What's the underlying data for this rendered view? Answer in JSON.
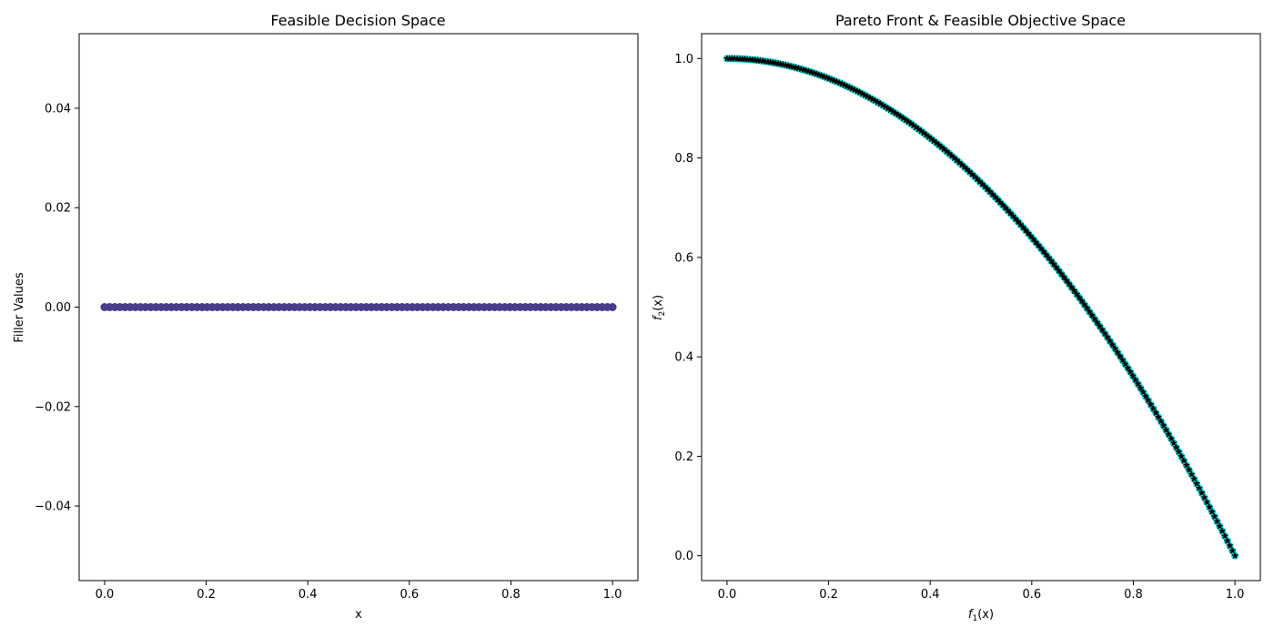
{
  "chart_data": [
    {
      "type": "scatter",
      "title": "Feasible Decision Space",
      "xlabel": "x",
      "ylabel": "Filler Values",
      "xlim": [
        -0.05,
        1.05
      ],
      "ylim": [
        -0.055,
        0.055
      ],
      "xticks": [
        0.0,
        0.2,
        0.4,
        0.6,
        0.8,
        1.0
      ],
      "xtick_labels": [
        "0.0",
        "0.2",
        "0.4",
        "0.6",
        "0.8",
        "1.0"
      ],
      "yticks": [
        -0.04,
        -0.02,
        0.0,
        0.02,
        0.04
      ],
      "ytick_labels": [
        "−0.04",
        "−0.02",
        "0.00",
        "0.02",
        "0.04"
      ],
      "grid": false,
      "series": [
        {
          "color": "#483d8b",
          "marker": "circle",
          "points": {
            "x_start": 0.0,
            "x_end": 1.0,
            "count": 100,
            "y": 0.0
          }
        }
      ]
    },
    {
      "type": "scatter",
      "title": "Pareto Front & Feasible Objective Space",
      "xlabel_base": "f",
      "xlabel_sub": "1",
      "xlabel_arg": "(x)",
      "ylabel_base": "f",
      "ylabel_sub": "2",
      "ylabel_arg": "(x)",
      "xlim": [
        -0.05,
        1.05
      ],
      "ylim": [
        -0.05,
        1.05
      ],
      "xticks": [
        0.0,
        0.2,
        0.4,
        0.6,
        0.8,
        1.0
      ],
      "xtick_labels": [
        "0.0",
        "0.2",
        "0.4",
        "0.6",
        "0.8",
        "1.0"
      ],
      "yticks": [
        0.0,
        0.2,
        0.4,
        0.6,
        0.8,
        1.0
      ],
      "ytick_labels": [
        "0.0",
        "0.2",
        "0.4",
        "0.6",
        "0.8",
        "1.0"
      ],
      "grid": false,
      "series": [
        {
          "color": "#00ced1",
          "marker": "circle",
          "relation": "y = 1 - x^2",
          "points": {
            "x_start": 0.0,
            "x_end": 1.0,
            "count": 200
          }
        },
        {
          "color": "#000000",
          "marker": "star",
          "relation": "y = 1 - x^2",
          "points": {
            "x_start": 0.0,
            "x_end": 1.0,
            "count": 200
          }
        }
      ]
    }
  ]
}
